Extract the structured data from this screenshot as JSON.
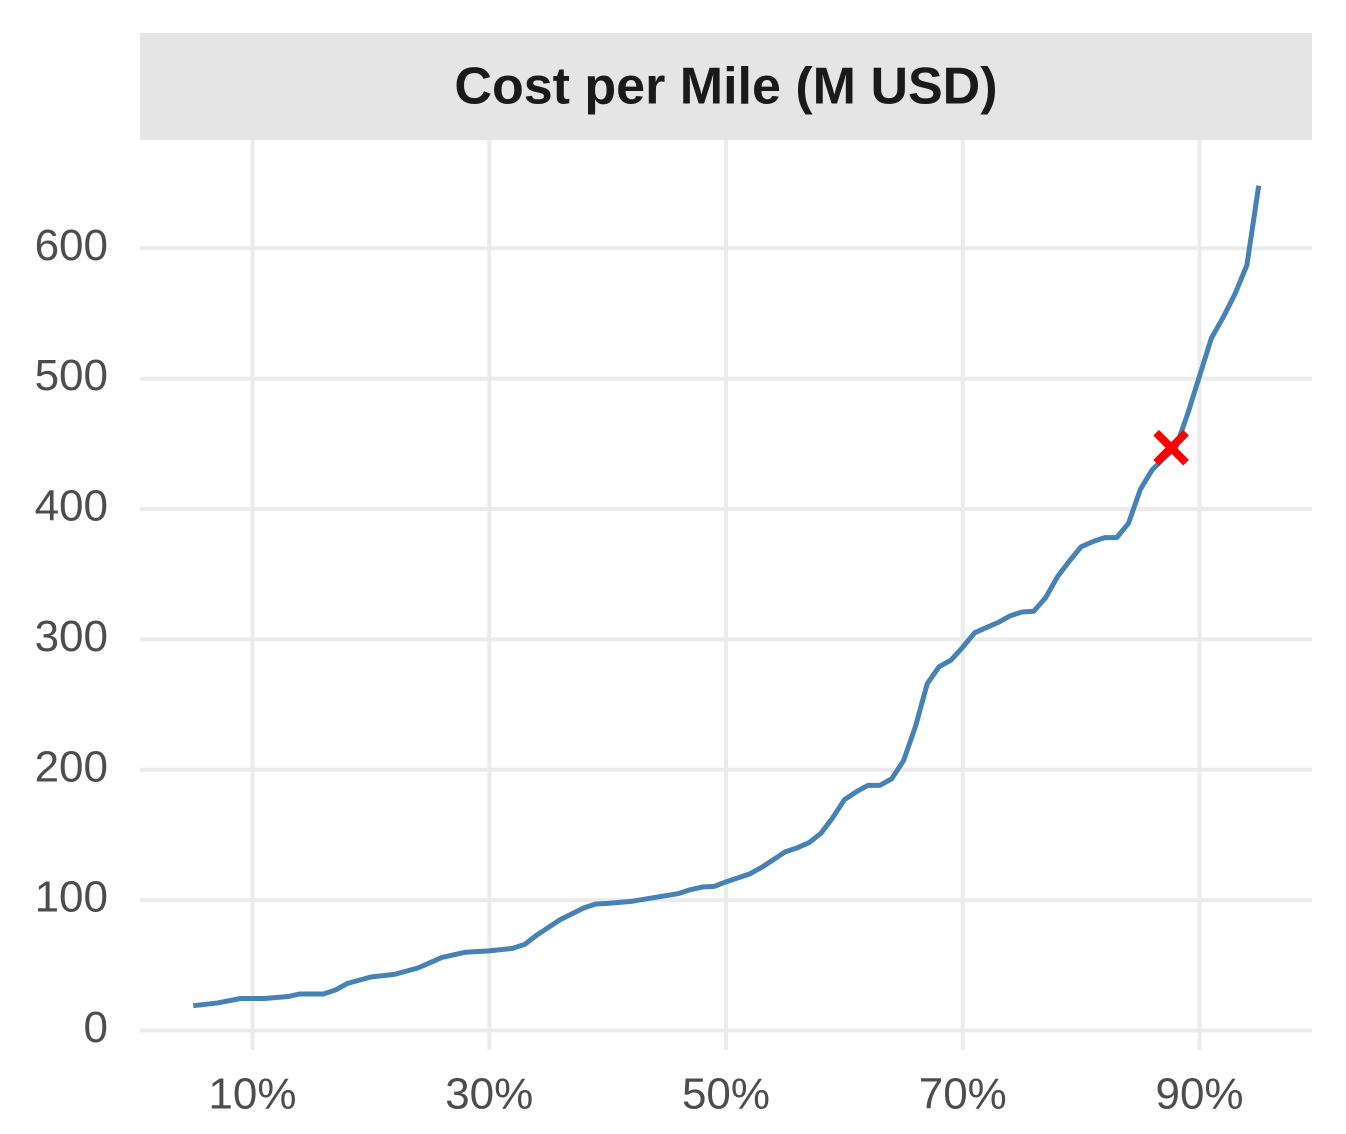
{
  "chart_data": {
    "type": "line",
    "title": "Cost per Mile (M USD)",
    "x": [
      5,
      7,
      9,
      11,
      13,
      14,
      15,
      16,
      17,
      18,
      20,
      22,
      24,
      25,
      26,
      27,
      28,
      30,
      32,
      33,
      34,
      35,
      36,
      38,
      39,
      40,
      42,
      44,
      46,
      47,
      48,
      49,
      50,
      52,
      53,
      54,
      55,
      56,
      57,
      58,
      59,
      60,
      61,
      62,
      63,
      64,
      65,
      66,
      67,
      68,
      69,
      70,
      71,
      72,
      73,
      74,
      75,
      76,
      77,
      78,
      79,
      80,
      81,
      82,
      83,
      84,
      85,
      86,
      87,
      88,
      89,
      90,
      91,
      92,
      93,
      94,
      95
    ],
    "values": [
      19,
      21,
      24.5,
      24.5,
      26,
      28,
      28,
      28,
      31,
      36,
      41,
      43,
      48,
      52,
      56,
      58,
      60,
      61,
      63,
      66,
      73,
      79,
      85,
      94,
      97,
      97.5,
      99,
      102,
      105,
      108,
      110,
      110.5,
      114,
      120,
      125,
      131,
      137,
      140,
      144,
      151,
      163,
      177,
      183,
      188,
      188,
      193,
      207,
      233,
      266,
      279,
      284,
      294,
      305,
      309,
      313,
      318,
      321,
      321.5,
      332,
      348,
      360,
      371,
      375,
      378,
      378,
      389,
      415,
      430,
      439,
      447,
      473,
      502,
      531,
      547,
      565,
      587,
      648
    ],
    "color": "#4682b4",
    "highlight": {
      "x": 87.6,
      "y": 447,
      "color": "#ff0000"
    },
    "xlim": [
      0.5,
      99.5
    ],
    "xticks": [
      {
        "value": 10,
        "label": "10%"
      },
      {
        "value": 30,
        "label": "30%"
      },
      {
        "value": 50,
        "label": "50%"
      },
      {
        "value": 70,
        "label": "70%"
      },
      {
        "value": 90,
        "label": "90%"
      }
    ],
    "ylim": [
      -15,
      683
    ],
    "yticks": [
      0,
      100,
      200,
      300,
      400,
      500,
      600
    ],
    "grid": true
  }
}
